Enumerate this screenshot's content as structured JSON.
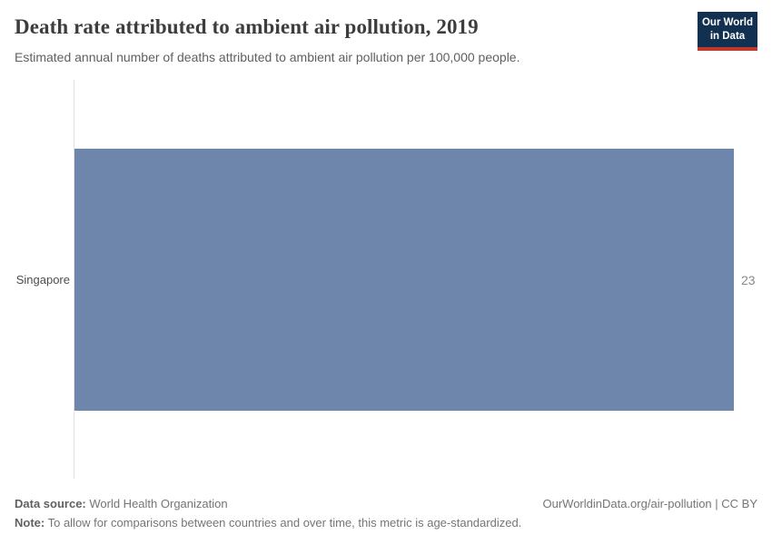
{
  "header": {
    "title": "Death rate attributed to ambient air pollution, 2019",
    "subtitle": "Estimated annual number of deaths attributed to ambient air pollution per 100,000 people.",
    "logo": {
      "line1": "Our World",
      "line2": "in Data",
      "bg_color": "#12304f",
      "accent_color": "#c0392b"
    }
  },
  "chart_data": {
    "type": "bar",
    "orientation": "horizontal",
    "title": "Death rate attributed to ambient air pollution, 2019",
    "categories": [
      "Singapore"
    ],
    "values": [
      23
    ],
    "value_labels": [
      "23"
    ],
    "xlim": [
      0,
      23
    ],
    "grid": false,
    "legend": "none",
    "bar_color": "#6e85ac",
    "axis_line_color": "#e3e3e3"
  },
  "footer": {
    "data_source_label": "Data source:",
    "data_source_value": " World Health Organization",
    "note_label": "Note:",
    "note_value": " To allow for comparisons between countries and over time, this metric is age-standardized.",
    "link": "OurWorldinData.org/air-pollution | CC BY"
  }
}
